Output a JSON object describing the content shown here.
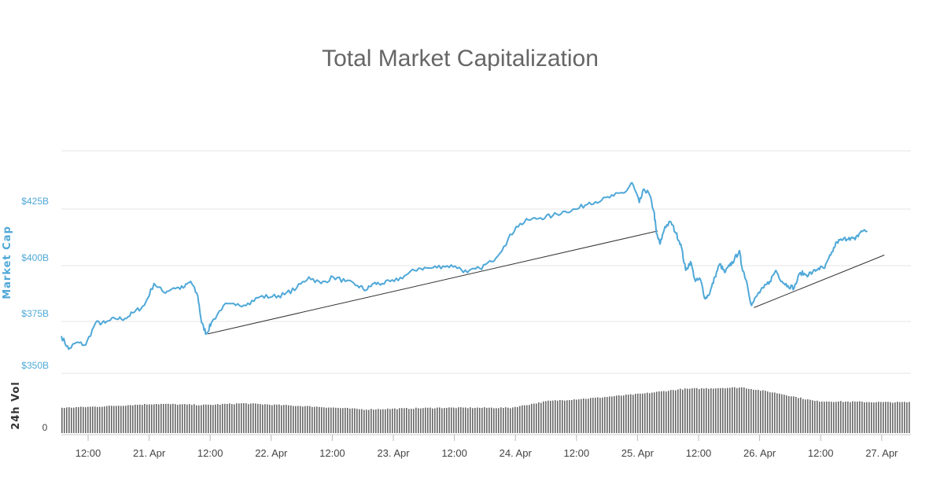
{
  "chart_data": {
    "type": "line",
    "title": "Total Market Capitalization",
    "ylabel": "Market Cap",
    "ylim_billion": [
      350,
      435
    ],
    "y_ticks": [
      "$350B",
      "$375B",
      "$400B",
      "$425B"
    ],
    "x_ticks": [
      "12:00",
      "21. Apr",
      "12:00",
      "22. Apr",
      "12:00",
      "23. Apr",
      "12:00",
      "24. Apr",
      "12:00",
      "25. Apr",
      "12:00",
      "26. Apr",
      "12:00",
      "27. Apr"
    ],
    "x_range": [
      "2018-04-20 05:30",
      "2018-04-27 06:00"
    ],
    "series": [
      {
        "color": "#4fa8d8",
        "x_unit": "days after 2018-04-20 00:00",
        "points": [
          [
            0.22,
            367
          ],
          [
            0.28,
            361
          ],
          [
            0.34,
            364
          ],
          [
            0.42,
            363
          ],
          [
            0.5,
            373
          ],
          [
            0.58,
            373
          ],
          [
            0.66,
            375
          ],
          [
            0.74,
            375
          ],
          [
            0.82,
            378
          ],
          [
            0.9,
            381
          ],
          [
            0.98,
            391
          ],
          [
            1.06,
            387
          ],
          [
            1.14,
            389
          ],
          [
            1.22,
            389
          ],
          [
            1.28,
            392
          ],
          [
            1.34,
            385
          ],
          [
            1.37,
            373
          ],
          [
            1.41,
            368
          ],
          [
            1.45,
            373
          ],
          [
            1.55,
            381
          ],
          [
            1.65,
            381
          ],
          [
            1.75,
            382
          ],
          [
            1.85,
            385
          ],
          [
            1.95,
            385
          ],
          [
            2.05,
            386
          ],
          [
            2.15,
            389
          ],
          [
            2.25,
            394
          ],
          [
            2.35,
            391
          ],
          [
            2.45,
            394
          ],
          [
            2.55,
            392
          ],
          [
            2.65,
            390
          ],
          [
            2.72,
            388
          ],
          [
            2.78,
            391
          ],
          [
            2.85,
            391
          ],
          [
            2.95,
            392
          ],
          [
            3.05,
            395
          ],
          [
            3.15,
            398
          ],
          [
            3.25,
            398
          ],
          [
            3.35,
            399
          ],
          [
            3.45,
            399
          ],
          [
            3.55,
            396
          ],
          [
            3.65,
            398
          ],
          [
            3.75,
            401
          ],
          [
            3.85,
            408
          ],
          [
            3.95,
            417
          ],
          [
            4.05,
            420
          ],
          [
            4.15,
            421
          ],
          [
            4.25,
            422
          ],
          [
            4.35,
            424
          ],
          [
            4.45,
            425
          ],
          [
            4.55,
            428
          ],
          [
            4.65,
            429
          ],
          [
            4.75,
            431
          ],
          [
            4.85,
            433
          ],
          [
            4.9,
            437
          ],
          [
            4.96,
            428
          ],
          [
            5.0,
            434
          ],
          [
            5.04,
            432
          ],
          [
            5.08,
            424
          ],
          [
            5.1,
            414
          ],
          [
            5.13,
            409
          ],
          [
            5.17,
            417
          ],
          [
            5.22,
            419
          ],
          [
            5.26,
            414
          ],
          [
            5.3,
            409
          ],
          [
            5.34,
            397
          ],
          [
            5.38,
            401
          ],
          [
            5.42,
            392
          ],
          [
            5.46,
            393
          ],
          [
            5.5,
            384
          ],
          [
            5.54,
            387
          ],
          [
            5.58,
            394
          ],
          [
            5.62,
            400
          ],
          [
            5.66,
            396
          ],
          [
            5.7,
            399
          ],
          [
            5.74,
            402
          ],
          [
            5.78,
            406
          ],
          [
            5.8,
            399
          ],
          [
            5.84,
            392
          ],
          [
            5.88,
            381
          ],
          [
            5.93,
            386
          ],
          [
            5.98,
            389
          ],
          [
            6.03,
            392
          ],
          [
            6.08,
            397
          ],
          [
            6.13,
            392
          ],
          [
            6.18,
            390
          ],
          [
            6.23,
            389
          ],
          [
            6.28,
            396
          ],
          [
            6.33,
            395
          ],
          [
            6.38,
            396
          ],
          [
            6.43,
            398
          ],
          [
            6.48,
            398
          ],
          [
            6.53,
            404
          ],
          [
            6.58,
            410
          ],
          [
            6.63,
            411
          ],
          [
            6.68,
            412
          ],
          [
            6.73,
            411
          ],
          [
            6.78,
            415
          ],
          [
            6.83,
            415
          ]
        ]
      }
    ],
    "trend_lines": [
      {
        "from": [
          1.42,
          368
        ],
        "to": [
          5.11,
          415
        ]
      },
      {
        "from": [
          5.9,
          380
        ],
        "to": [
          6.97,
          404
        ]
      }
    ],
    "volume": {
      "label": "24h Vol",
      "tick": "0",
      "relative_levels": [
        [
          0.22,
          0.46
        ],
        [
          0.5,
          0.48
        ],
        [
          0.98,
          0.53
        ],
        [
          1.4,
          0.51
        ],
        [
          1.7,
          0.54
        ],
        [
          2.3,
          0.48
        ],
        [
          2.7,
          0.43
        ],
        [
          3.3,
          0.46
        ],
        [
          3.9,
          0.46
        ],
        [
          4.2,
          0.58
        ],
        [
          4.6,
          0.64
        ],
        [
          5.0,
          0.72
        ],
        [
          5.3,
          0.8
        ],
        [
          5.8,
          0.83
        ],
        [
          6.1,
          0.72
        ],
        [
          6.4,
          0.58
        ],
        [
          6.97,
          0.56
        ]
      ]
    }
  }
}
